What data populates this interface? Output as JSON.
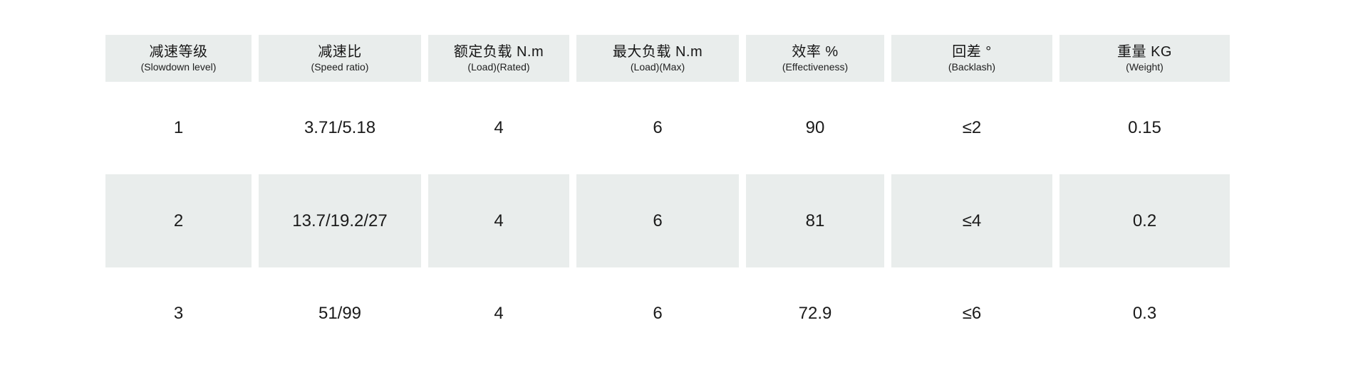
{
  "table": {
    "headers": [
      {
        "zh": "减速等级",
        "en": "(Slowdown level)"
      },
      {
        "zh": "减速比",
        "en": "(Speed ratio)"
      },
      {
        "zh": "额定负载 N.m",
        "en": "(Load)(Rated)"
      },
      {
        "zh": "最大负载 N.m",
        "en": "(Load)(Max)"
      },
      {
        "zh": "效率 %",
        "en": "(Effectiveness)"
      },
      {
        "zh": "回差 °",
        "en": "(Backlash)"
      },
      {
        "zh": "重量 KG",
        "en": "(Weight)"
      }
    ],
    "rows": [
      {
        "cells": [
          "1",
          "3.71/5.18",
          "4",
          "6",
          "90",
          "≤2",
          "0.15"
        ]
      },
      {
        "cells": [
          "2",
          "13.7/19.2/27",
          "4",
          "6",
          "81",
          "≤4",
          "0.2"
        ]
      },
      {
        "cells": [
          "3",
          "51/99",
          "4",
          "6",
          "72.9",
          "≤6",
          "0.3"
        ]
      }
    ],
    "colors": {
      "band_background": "#e9edec",
      "text": "#1a1a1a",
      "page_background": "#ffffff"
    }
  }
}
